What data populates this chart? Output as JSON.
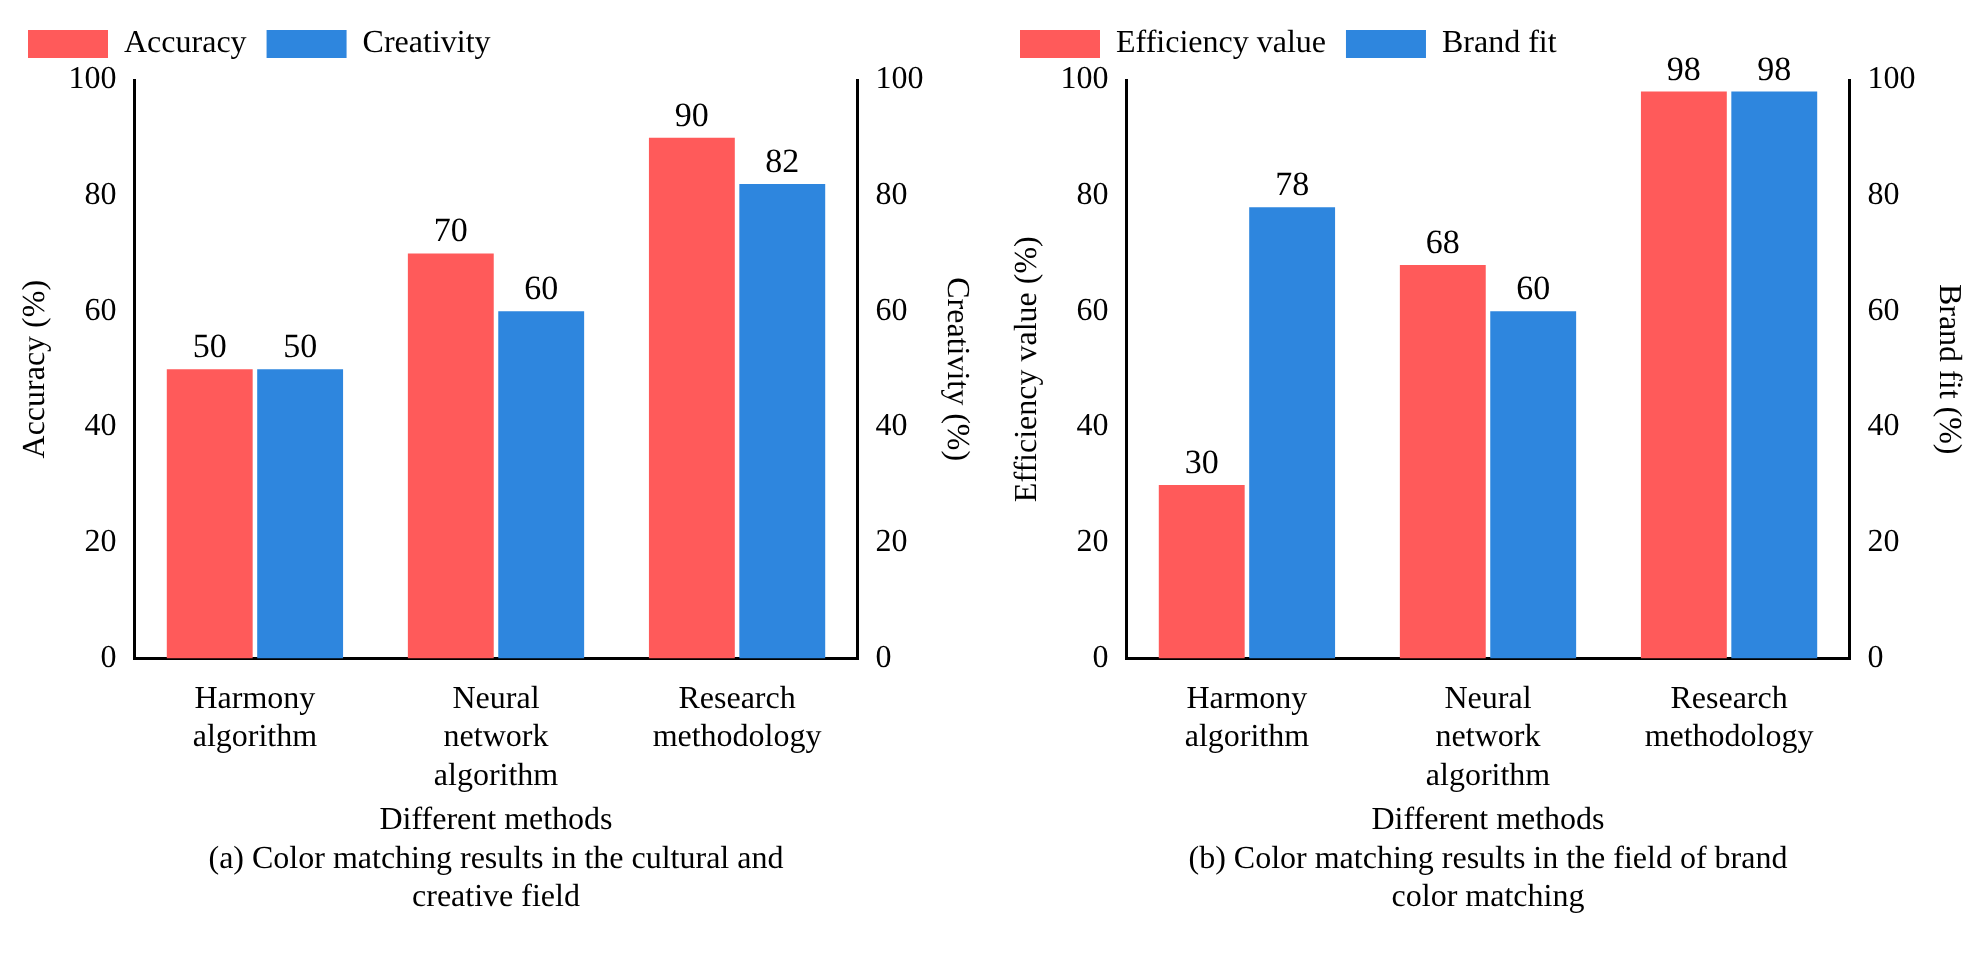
{
  "chart_data": [
    {
      "type": "bar",
      "xlabel": "Different methods",
      "ylabel": "Accuracy (%)",
      "y2label": "Creativity (%)",
      "annotations": [
        "(a) Color matching results in the cultural and creative field"
      ],
      "categories": [
        "Harmony algorithm",
        "Neural network algorithm",
        "Research methodology"
      ],
      "series": [
        {
          "name": "Accuracy",
          "color": "#ff5a5a",
          "values": [
            50,
            70,
            90
          ]
        },
        {
          "name": "Creativity",
          "color": "#2e86de",
          "values": [
            50,
            60,
            82
          ],
          "axis": "y2"
        }
      ],
      "ylim": [
        0,
        100
      ],
      "yticks": [
        0,
        20,
        40,
        60,
        80,
        100
      ],
      "y2lim": [
        0,
        100
      ],
      "y2ticks": [
        0,
        20,
        40,
        60,
        80,
        100
      ],
      "grid": false,
      "legend": "top left",
      "data_labels": true
    },
    {
      "type": "bar",
      "xlabel": "Different methods",
      "ylabel": "Efficiency value (%)",
      "y2label": "Brand fit (%)",
      "annotations": [
        "(b) Color matching results in the field of brand color matching"
      ],
      "categories": [
        "Harmony algorithm",
        "Neural network algorithm",
        "Research methodology"
      ],
      "series": [
        {
          "name": "Efficiency value",
          "color": "#ff5a5a",
          "values": [
            30,
            68,
            98
          ]
        },
        {
          "name": "Brand fit",
          "color": "#2e86de",
          "values": [
            78,
            60,
            98
          ],
          "axis": "y2"
        }
      ],
      "ylim": [
        0,
        100
      ],
      "yticks": [
        0,
        20,
        40,
        60,
        80,
        100
      ],
      "y2lim": [
        0,
        100
      ],
      "y2ticks": [
        0,
        20,
        40,
        60,
        80,
        100
      ],
      "grid": false,
      "legend": "top left",
      "data_labels": true
    }
  ]
}
